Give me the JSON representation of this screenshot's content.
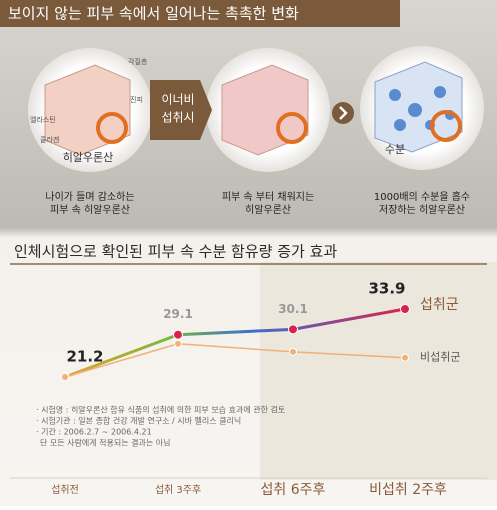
{
  "header": {
    "title": "보이지 않는 피부 속에서 일어나는 촉촉한 변화"
  },
  "steps": {
    "skin_labels": [
      "각질층",
      "진피",
      "엘라스틴",
      "콜라겐"
    ],
    "circle1_label": "히알우론산",
    "arrow_label": [
      "이너비",
      "섭취시"
    ],
    "circle3_label": "수분",
    "captions": [
      [
        "나이가 들며 감소하는",
        "피부 속 히알우론산"
      ],
      [
        "피부 속 부터 채워지는",
        "히알우론산"
      ],
      [
        "1000배의 수분을 흡수",
        "저장하는 히알우론산"
      ]
    ]
  },
  "chart_data": {
    "type": "line",
    "title": "인체시험으로 확인된 피부 속 수분 함유량 증가 효과",
    "categories": [
      "섭취전",
      "섭취 3주후",
      "섭취 6주후",
      "비섭취 2주후"
    ],
    "series": [
      {
        "name": "섭취군",
        "color": "#d8234a",
        "values": [
          21.2,
          29.1,
          30.1,
          33.9
        ]
      },
      {
        "name": "비섭취군",
        "color": "#f0b078",
        "values": [
          21.2,
          27.4,
          25.9,
          24.8
        ]
      }
    ],
    "notes": [
      "· 시험명 : 히알우론산 함유 식품의 섭취에 의한 피부 보습 효과에 관한 검토",
      "· 시험기관 : 일본 종합 건강 개발 연구소 / 시바 펠리스 클리닉",
      "· 기간 : 2006.2.7 ~ 2006.4.21",
      "단 모든 사람에게 적용되는 결과는 아님"
    ]
  }
}
